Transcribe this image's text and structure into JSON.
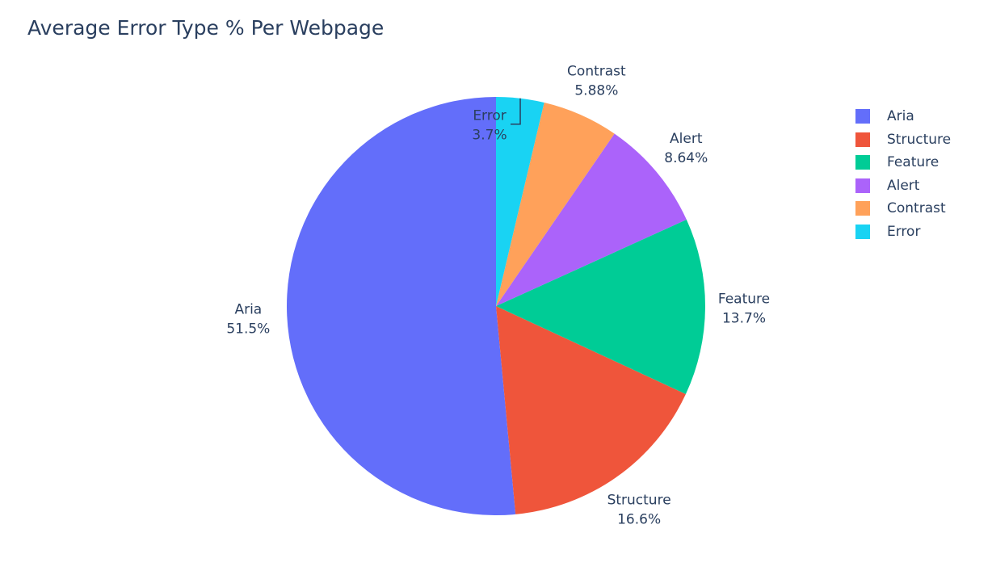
{
  "chart_data": {
    "type": "pie",
    "title": "Average Error Type % Per Webpage",
    "slices": [
      {
        "label": "Aria",
        "value": 51.5,
        "value_label": "51.5%",
        "color": "#636efa"
      },
      {
        "label": "Structure",
        "value": 16.6,
        "value_label": "16.6%",
        "color": "#ef553b"
      },
      {
        "label": "Feature",
        "value": 13.7,
        "value_label": "13.7%",
        "color": "#00cc96"
      },
      {
        "label": "Alert",
        "value": 8.64,
        "value_label": "8.64%",
        "color": "#ab63fa"
      },
      {
        "label": "Contrast",
        "value": 5.88,
        "value_label": "5.88%",
        "color": "#ffa15a"
      },
      {
        "label": "Error",
        "value": 3.7,
        "value_label": "3.7%",
        "color": "#19d3f3"
      }
    ],
    "direction": "counterclockwise",
    "legend_position": "right"
  }
}
